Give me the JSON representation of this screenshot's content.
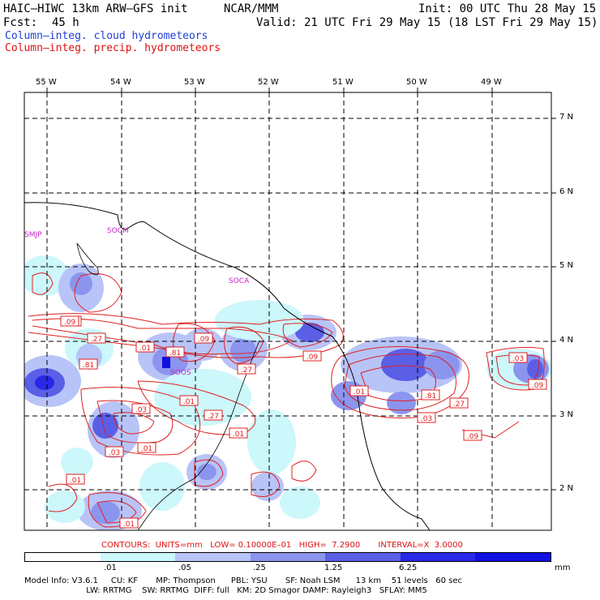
{
  "header": {
    "model": "HAIC–HIWC 13km ARW–GFS init",
    "org": "NCAR/MMM",
    "init": "Init: 00 UTC Thu 28 May 15",
    "fcst_label": "Fcst:",
    "fcst_value": "45 h",
    "valid": "Valid: 21 UTC Fri 29 May 15 (18 LST Fri 29 May 15)",
    "field1": "Column–integ. cloud hydrometeors",
    "field2": "Column–integ. precip. hydrometeors"
  },
  "colors": {
    "cloud_field": "#1f3fd6",
    "precip_field": "#dd1111",
    "station": "#cc22cc"
  },
  "map": {
    "lon_labels": [
      "55 W",
      "54 W",
      "53 W",
      "52 W",
      "51 W",
      "50 W",
      "49 W"
    ],
    "lat_labels": [
      "7 N",
      "6 N",
      "5 N",
      "4 N",
      "3 N",
      "2 N"
    ],
    "stations": [
      "SMJP",
      "SOCM",
      "SOCA",
      "SOOS"
    ],
    "contour_labels": [
      ".09",
      ".27",
      ".01",
      ".81",
      ".81",
      ".09",
      ".27",
      ".09",
      ".09",
      ".03",
      ".01",
      ".27",
      ".01",
      ".03",
      ".01",
      ".01",
      ".81",
      ".27",
      ".03",
      ".09",
      ".01",
      ".03",
      ".09",
      ".01",
      ".01"
    ]
  },
  "contours_text": "CONTOURS:  UNITS=mm   LOW= 0.10000E–01   HIGH=  7.2900       INTERVAL=X  3.0000",
  "colorbar": {
    "colors": [
      "#ffffff",
      "#ccf7fb",
      "#b8c4f7",
      "#8c95ee",
      "#5a5fe6",
      "#2828e6",
      "#1010e0"
    ],
    "ticks": [
      ".01",
      ".05",
      ".25",
      "1.25",
      "6.25"
    ],
    "units": "mm"
  },
  "model_info": {
    "line1": "Model Info: V3.6.1     CU: KF       MP: Thompson      PBL: YSU       SF: Noah LSM      13 km    51 levels   60 sec",
    "line2": "                        LW: RRTMG    SW: RRTMG  DIFF: full   KM: 2D Smagor DAMP: Rayleigh3   SFLAY: MM5"
  }
}
